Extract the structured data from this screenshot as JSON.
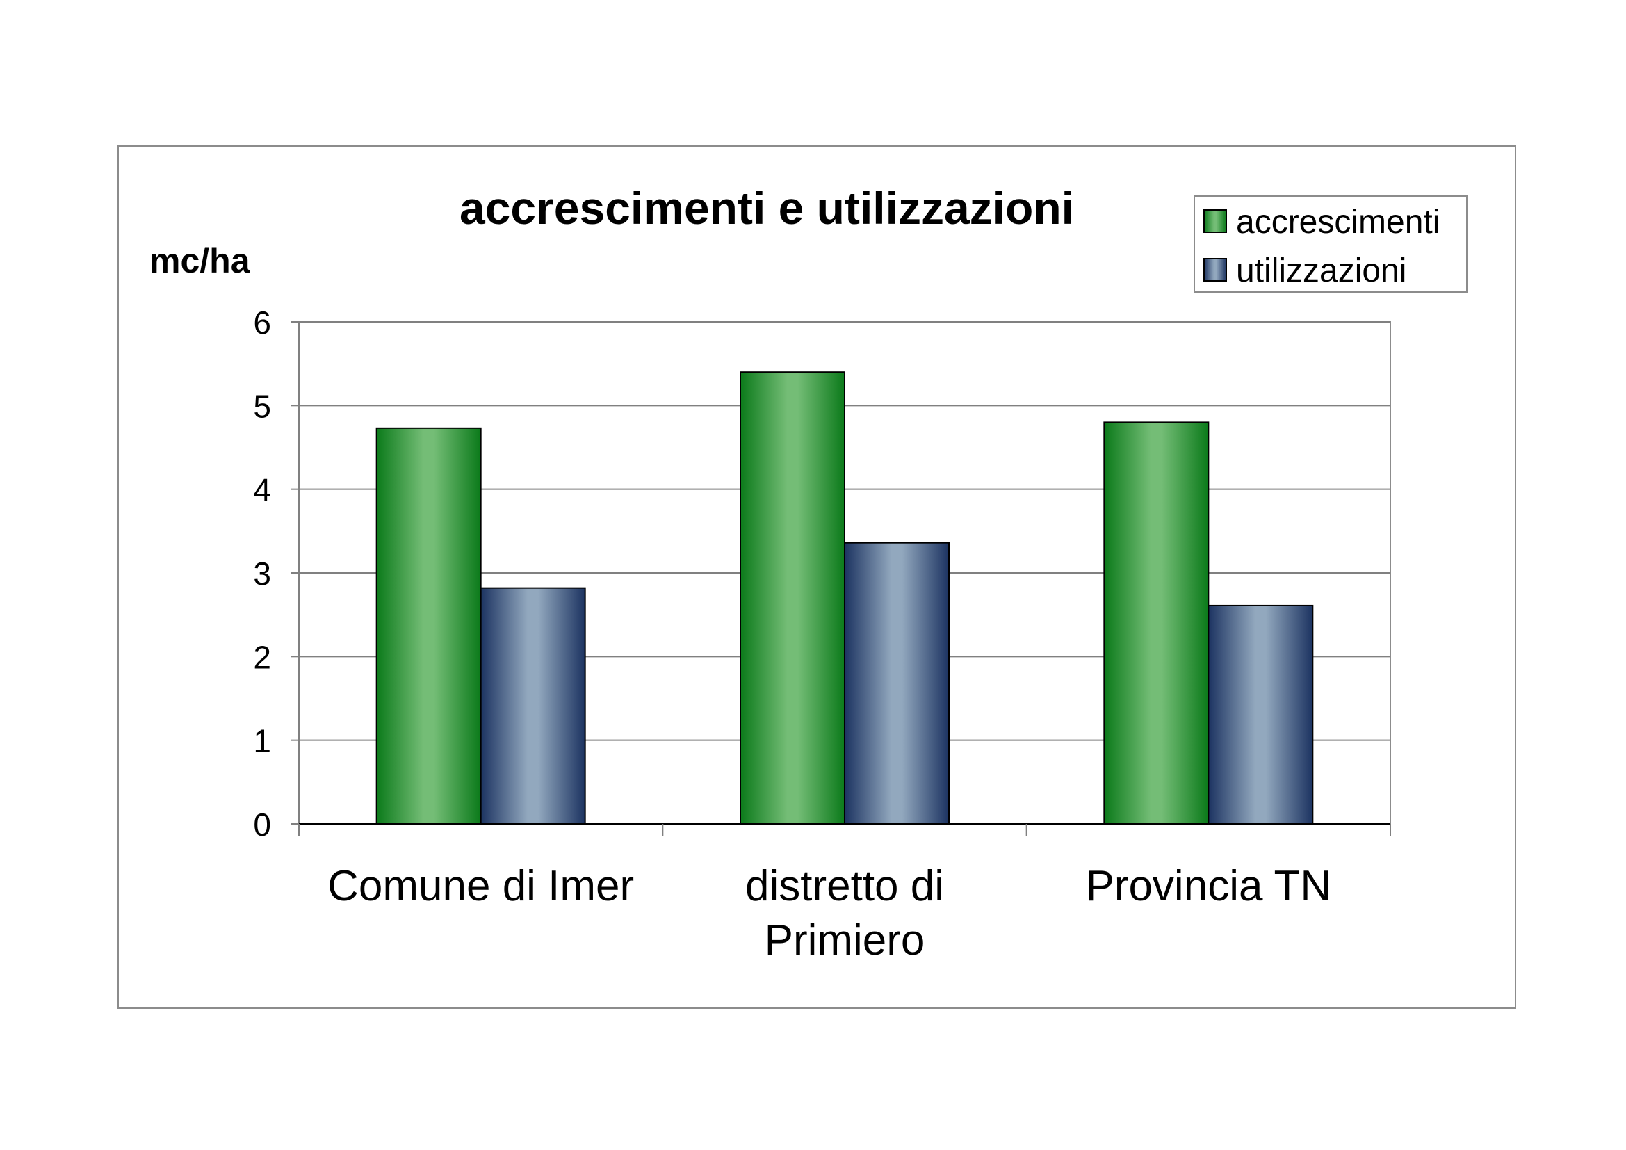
{
  "chart_data": {
    "type": "bar",
    "title": "accrescimenti e utilizzazioni",
    "ylabel": "mc/ha",
    "xlabel": "",
    "ylim": [
      0,
      6
    ],
    "yticks": [
      "0",
      "1",
      "2",
      "3",
      "4",
      "5",
      "6"
    ],
    "grid": true,
    "legend_position": "top-right",
    "categories": [
      [
        "Comune di Imer"
      ],
      [
        "distretto di",
        "Primiero"
      ],
      [
        "Provincia TN"
      ]
    ],
    "series": [
      {
        "name": "accrescimenti",
        "values": [
          4.73,
          5.4,
          4.8
        ],
        "color_dark": "#0b7a1a",
        "color_light": "#74bd76"
      },
      {
        "name": "utilizzazioni",
        "values": [
          2.82,
          3.36,
          2.61
        ],
        "color_dark": "#1c3361",
        "color_light": "#92a8be"
      }
    ]
  }
}
